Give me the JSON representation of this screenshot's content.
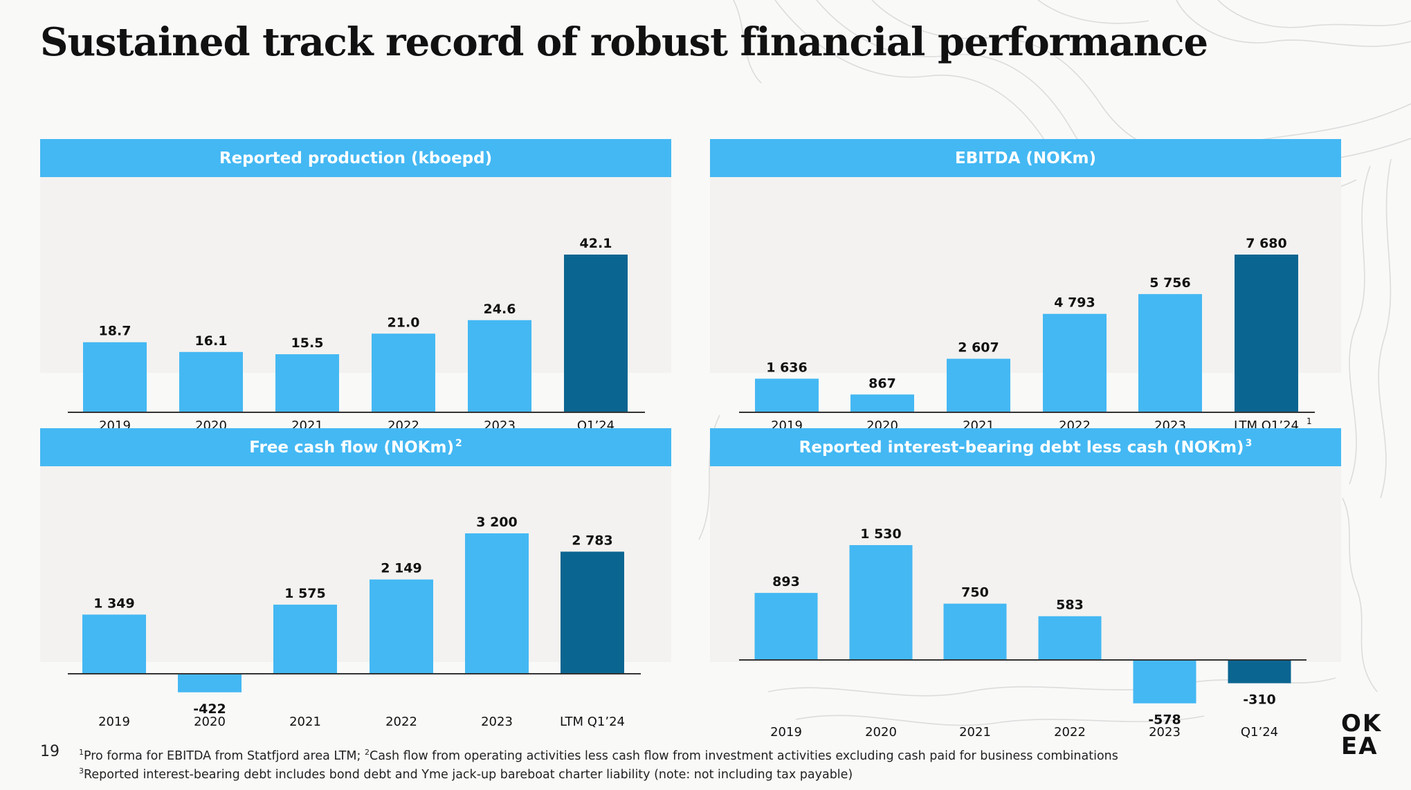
{
  "page": {
    "title": "Sustained track record of robust financial performance",
    "number": "19",
    "logo": [
      "OK",
      "EA"
    ],
    "footnotes": [
      {
        "mark": "1",
        "text": "Pro forma for EBITDA from Statfjord area LTM;"
      },
      {
        "mark": "2",
        "text": "Cash flow from operating activities less cash flow from investment activities excluding cash paid for business combinations"
      },
      {
        "mark": "3",
        "text": "Reported interest-bearing debt includes bond debt and Yme jack-up bareboat charter liability (note: not including tax payable)"
      }
    ]
  },
  "colors": {
    "header": "#44b8f3",
    "bar": "#44b8f3",
    "bar_highlight": "#0b6591",
    "panel_bg": "#f3f2f0",
    "axis": "#333333"
  },
  "chart_data": [
    {
      "type": "bar",
      "title": "Reported production (kboepd)",
      "title_note": "",
      "categories": [
        "2019",
        "2020",
        "2021",
        "2022",
        "2023",
        "Q1’24"
      ],
      "category_note": "",
      "values": [
        18.7,
        16.1,
        15.5,
        21.0,
        24.6,
        42.1
      ],
      "labels": [
        "18.7",
        "16.1",
        "15.5",
        "21.0",
        "24.6",
        "42.1"
      ],
      "highlight_index": 5
    },
    {
      "type": "bar",
      "title": "EBITDA (NOKm)",
      "title_note": "",
      "categories": [
        "2019",
        "2020",
        "2021",
        "2022",
        "2023",
        "LTM Q1’24"
      ],
      "category_note": "1",
      "values": [
        1636,
        867,
        2607,
        4793,
        5756,
        7680
      ],
      "labels": [
        "1 636",
        "867",
        "2 607",
        "4 793",
        "5 756",
        "7 680"
      ],
      "highlight_index": 5
    },
    {
      "type": "bar",
      "title": "Free cash flow (NOKm)",
      "title_note": "2",
      "categories": [
        "2019",
        "2020",
        "2021",
        "2022",
        "2023",
        "LTM Q1’24"
      ],
      "category_note": "",
      "values": [
        1349,
        -422,
        1575,
        2149,
        3200,
        2783
      ],
      "labels": [
        "1 349",
        "-422",
        "1 575",
        "2 149",
        "3 200",
        "2 783"
      ],
      "highlight_index": 5
    },
    {
      "type": "bar",
      "title": "Reported interest-bearing debt less cash (NOKm)",
      "title_note": "3",
      "categories": [
        "2019",
        "2020",
        "2021",
        "2022",
        "2023",
        "Q1’24"
      ],
      "category_note": "",
      "values": [
        893,
        1530,
        750,
        583,
        -578,
        -310
      ],
      "labels": [
        "893",
        "1 530",
        "750",
        "583",
        "-578",
        "-310"
      ],
      "highlight_index": 5
    }
  ]
}
